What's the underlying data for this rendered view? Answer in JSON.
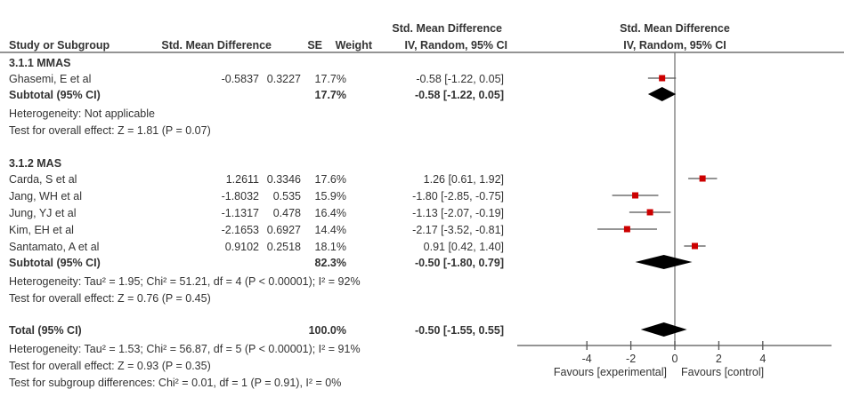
{
  "header": {
    "study": "Study or Subgroup",
    "smd": "Std. Mean Difference",
    "se": "SE",
    "weight": "Weight",
    "ci_line1": "Std. Mean Difference",
    "ci_line2": "IV, Random, 95% CI",
    "plot_line1": "Std. Mean Difference",
    "plot_line2": "IV, Random, 95% CI"
  },
  "chart_data": {
    "type": "forest",
    "xlim": [
      -4,
      4
    ],
    "xticks": [
      "-4",
      "-2",
      "0",
      "2",
      "4"
    ],
    "xtick_values": [
      -4,
      -2,
      0,
      2,
      4
    ],
    "favours_left": "Favours [experimental]",
    "favours_right": "Favours [control]",
    "marker_color": "#cc0000",
    "groups": [
      {
        "label": "3.1.1 MMAS",
        "studies": [
          {
            "name": "Ghasemi, E et al",
            "smd": "-0.5837",
            "se": "0.3227",
            "weight": "17.7%",
            "ci": "-0.58 [-1.22, 0.05]",
            "est": -0.58,
            "lo": -1.22,
            "hi": 0.05
          }
        ],
        "subtotal": {
          "label": "Subtotal (95% CI)",
          "weight": "17.7%",
          "ci": "-0.58 [-1.22, 0.05]",
          "est": -0.58,
          "lo": -1.22,
          "hi": 0.05
        },
        "heterogeneity": "Heterogeneity: Not applicable",
        "overall": "Test for overall effect: Z = 1.81 (P = 0.07)"
      },
      {
        "label": "3.1.2 MAS",
        "studies": [
          {
            "name": "Carda, S et al",
            "smd": "1.2611",
            "se": "0.3346",
            "weight": "17.6%",
            "ci": "1.26 [0.61, 1.92]",
            "est": 1.26,
            "lo": 0.61,
            "hi": 1.92
          },
          {
            "name": "Jang, WH et al",
            "smd": "-1.8032",
            "se": "0.535",
            "weight": "15.9%",
            "ci": "-1.80 [-2.85, -0.75]",
            "est": -1.8,
            "lo": -2.85,
            "hi": -0.75
          },
          {
            "name": "Jung, YJ et al",
            "smd": "-1.1317",
            "se": "0.478",
            "weight": "16.4%",
            "ci": "-1.13 [-2.07, -0.19]",
            "est": -1.13,
            "lo": -2.07,
            "hi": -0.19
          },
          {
            "name": "Kim, EH et al",
            "smd": "-2.1653",
            "se": "0.6927",
            "weight": "14.4%",
            "ci": "-2.17 [-3.52, -0.81]",
            "est": -2.17,
            "lo": -3.52,
            "hi": -0.81
          },
          {
            "name": "Santamato, A et al",
            "smd": "0.9102",
            "se": "0.2518",
            "weight": "18.1%",
            "ci": "0.91 [0.42, 1.40]",
            "est": 0.91,
            "lo": 0.42,
            "hi": 1.4
          }
        ],
        "subtotal": {
          "label": "Subtotal (95% CI)",
          "weight": "82.3%",
          "ci": "-0.50 [-1.80, 0.79]",
          "est": -0.5,
          "lo": -1.8,
          "hi": 0.79
        },
        "heterogeneity": "Heterogeneity: Tau² = 1.95; Chi² = 51.21, df = 4 (P < 0.00001); I² = 92%",
        "overall": "Test for overall effect: Z = 0.76 (P = 0.45)"
      }
    ],
    "total": {
      "label": "Total (95% CI)",
      "weight": "100.0%",
      "ci": "-0.50 [-1.55, 0.55]",
      "est": -0.5,
      "lo": -1.55,
      "hi": 0.55
    },
    "total_heterogeneity": "Heterogeneity: Tau² = 1.53; Chi² = 56.87, df = 5 (P < 0.00001); I² = 91%",
    "total_overall": "Test for overall effect: Z = 0.93 (P = 0.35)",
    "subgroup_test": "Test for subgroup differences: Chi² = 0.01, df = 1 (P = 0.91), I² = 0%"
  }
}
